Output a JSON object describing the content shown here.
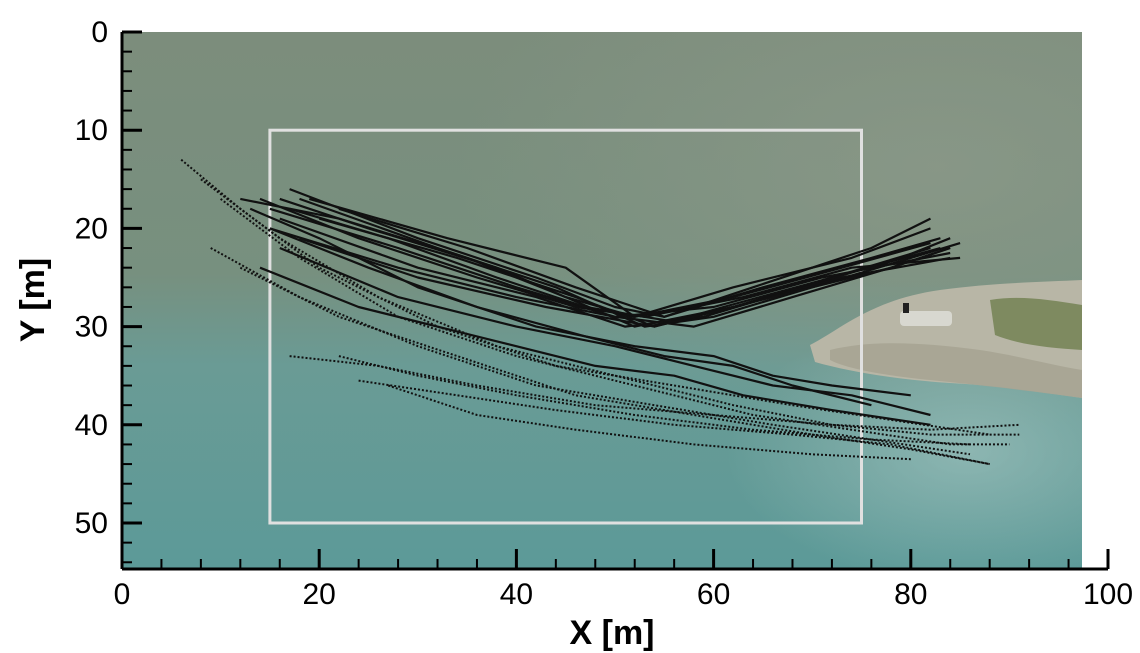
{
  "chart_data": {
    "type": "scatter",
    "title": "",
    "xlabel": "X [m]",
    "ylabel": "Y [m]",
    "xlim": [
      0,
      100
    ],
    "ylim": [
      55,
      0
    ],
    "y_axis_inverted": true,
    "x_ticks": [
      0,
      20,
      40,
      60,
      80,
      100
    ],
    "y_ticks": [
      0,
      10,
      20,
      30,
      40,
      50
    ],
    "grid": false,
    "legend": "none",
    "background": "aerial photograph of river water with rocky bank on the right",
    "region_box": {
      "x": [
        15,
        75
      ],
      "y": [
        10,
        50
      ],
      "color": "#e0e0e0"
    },
    "colors": {
      "tracks": "#111111",
      "box": "#e0e0e0",
      "water_top": "#7b8e7e",
      "water_bottom": "#5f9a98",
      "rocks": "#b9b8a8"
    },
    "series": [
      {
        "points": [
          [
            16,
            17
          ],
          [
            25,
            20
          ],
          [
            38,
            24
          ],
          [
            45,
            27
          ],
          [
            52,
            30
          ],
          [
            62,
            28
          ],
          [
            72,
            25
          ],
          [
            82,
            22
          ]
        ]
      },
      {
        "points": [
          [
            15,
            18
          ],
          [
            28,
            22
          ],
          [
            40,
            26
          ],
          [
            50,
            29
          ],
          [
            58,
            30
          ],
          [
            68,
            27
          ],
          [
            78,
            24
          ],
          [
            84,
            22
          ]
        ]
      },
      {
        "points": [
          [
            14,
            17
          ],
          [
            24,
            21
          ],
          [
            36,
            25
          ],
          [
            46,
            28
          ],
          [
            53,
            29
          ],
          [
            63,
            27
          ],
          [
            74,
            24
          ],
          [
            85,
            23
          ]
        ]
      },
      {
        "points": [
          [
            17,
            16
          ],
          [
            30,
            21
          ],
          [
            42,
            25
          ],
          [
            50,
            28
          ],
          [
            55,
            29
          ],
          [
            65,
            26
          ],
          [
            76,
            23
          ],
          [
            83,
            21
          ]
        ]
      },
      {
        "points": [
          [
            12,
            17
          ],
          [
            22,
            19
          ],
          [
            35,
            23
          ],
          [
            45,
            27
          ],
          [
            52,
            29
          ],
          [
            62,
            27
          ],
          [
            73,
            24
          ],
          [
            82,
            21.5
          ]
        ]
      },
      {
        "points": [
          [
            18,
            17
          ],
          [
            32,
            22
          ],
          [
            44,
            26
          ],
          [
            53,
            30
          ],
          [
            60,
            29
          ],
          [
            70,
            26
          ],
          [
            80,
            23
          ],
          [
            85,
            21.5
          ]
        ]
      },
      {
        "points": [
          [
            20,
            19
          ],
          [
            34,
            23
          ],
          [
            46,
            27
          ],
          [
            54,
            30
          ],
          [
            61,
            28
          ],
          [
            72,
            25
          ],
          [
            83,
            22
          ]
        ]
      },
      {
        "points": [
          [
            16,
            19
          ],
          [
            30,
            24
          ],
          [
            42,
            27
          ],
          [
            51,
            30
          ],
          [
            59,
            29
          ],
          [
            69,
            26
          ],
          [
            79,
            23
          ],
          [
            84,
            21
          ]
        ]
      },
      {
        "points": [
          [
            19,
            17
          ],
          [
            33,
            21
          ],
          [
            45,
            24
          ],
          [
            52,
            29
          ],
          [
            62,
            26
          ],
          [
            74,
            23
          ],
          [
            82,
            20
          ]
        ]
      },
      {
        "points": [
          [
            22,
            18
          ],
          [
            35,
            22
          ],
          [
            46,
            26
          ],
          [
            55,
            29
          ],
          [
            64,
            26
          ],
          [
            76,
            22
          ],
          [
            82,
            19
          ]
        ]
      },
      {
        "points": [
          [
            15,
            20
          ],
          [
            28,
            24
          ],
          [
            40,
            27
          ],
          [
            50,
            29
          ],
          [
            60,
            28
          ],
          [
            71,
            25
          ],
          [
            84,
            22.5
          ]
        ]
      },
      {
        "points": [
          [
            18,
            21
          ],
          [
            30,
            25
          ],
          [
            43,
            28
          ],
          [
            54,
            30
          ],
          [
            62,
            28
          ],
          [
            73,
            25
          ],
          [
            84,
            23
          ]
        ]
      },
      {
        "points": [
          [
            17,
            18
          ],
          [
            27,
            21
          ],
          [
            38,
            25
          ],
          [
            47,
            28
          ],
          [
            56,
            29.5
          ],
          [
            66,
            27
          ],
          [
            78,
            24
          ],
          [
            84,
            22
          ]
        ]
      },
      {
        "points": [
          [
            13,
            18
          ],
          [
            20,
            21
          ],
          [
            30,
            26
          ],
          [
            42,
            30
          ],
          [
            52,
            32
          ],
          [
            60,
            33
          ],
          [
            66,
            35
          ],
          [
            72,
            36
          ],
          [
            80,
            37
          ]
        ]
      },
      {
        "points": [
          [
            15,
            20
          ],
          [
            25,
            24
          ],
          [
            36,
            28
          ],
          [
            47,
            31
          ],
          [
            55,
            33
          ],
          [
            62,
            34
          ],
          [
            68,
            36
          ],
          [
            76,
            38
          ]
        ]
      },
      {
        "points": [
          [
            16,
            22
          ],
          [
            28,
            27
          ],
          [
            40,
            30
          ],
          [
            50,
            32
          ],
          [
            58,
            34
          ],
          [
            66,
            36
          ],
          [
            74,
            37
          ],
          [
            82,
            39
          ]
        ]
      },
      {
        "points": [
          [
            14,
            24
          ],
          [
            24,
            28
          ],
          [
            36,
            31
          ],
          [
            48,
            34
          ],
          [
            56,
            35
          ],
          [
            63,
            37
          ],
          [
            72,
            38.5
          ],
          [
            82,
            40
          ]
        ]
      },
      {
        "points": [
          [
            6,
            13
          ],
          [
            12,
            18
          ],
          [
            20,
            24
          ],
          [
            32,
            30
          ],
          [
            44,
            34
          ],
          [
            56,
            36
          ],
          [
            68,
            38
          ],
          [
            78,
            39.5
          ],
          [
            88,
            41
          ]
        ]
      },
      {
        "points": [
          [
            8,
            15
          ],
          [
            16,
            21
          ],
          [
            26,
            27
          ],
          [
            38,
            32
          ],
          [
            50,
            35
          ],
          [
            62,
            38
          ],
          [
            72,
            40
          ],
          [
            82,
            41
          ],
          [
            91,
            41
          ]
        ]
      },
      {
        "points": [
          [
            10,
            17
          ],
          [
            18,
            23
          ],
          [
            28,
            29
          ],
          [
            40,
            33
          ],
          [
            52,
            36
          ],
          [
            64,
            39
          ],
          [
            74,
            40.5
          ],
          [
            84,
            42
          ],
          [
            90,
            42
          ]
        ]
      },
      {
        "points": [
          [
            9,
            22
          ],
          [
            18,
            27
          ],
          [
            30,
            32
          ],
          [
            42,
            36
          ],
          [
            54,
            38
          ],
          [
            66,
            40
          ],
          [
            76,
            41.5
          ],
          [
            86,
            43
          ]
        ]
      },
      {
        "points": [
          [
            12,
            24
          ],
          [
            22,
            29
          ],
          [
            34,
            33
          ],
          [
            46,
            37
          ],
          [
            58,
            39
          ],
          [
            70,
            41
          ],
          [
            80,
            42.5
          ],
          [
            88,
            44
          ]
        ]
      },
      {
        "points": [
          [
            17,
            33
          ],
          [
            26,
            34
          ],
          [
            36,
            36
          ],
          [
            48,
            38
          ],
          [
            60,
            39
          ],
          [
            72,
            40
          ],
          [
            82,
            40.5
          ],
          [
            91,
            40
          ]
        ]
      },
      {
        "points": [
          [
            22,
            33
          ],
          [
            30,
            35
          ],
          [
            40,
            37
          ],
          [
            52,
            39
          ],
          [
            64,
            40.5
          ],
          [
            76,
            41.5
          ],
          [
            86,
            42
          ]
        ]
      },
      {
        "points": [
          [
            24,
            35.5
          ],
          [
            34,
            37
          ],
          [
            44,
            38.5
          ],
          [
            56,
            40
          ],
          [
            68,
            41
          ],
          [
            78,
            42
          ],
          [
            88,
            44
          ]
        ]
      },
      {
        "points": [
          [
            27,
            36
          ],
          [
            36,
            39
          ],
          [
            46,
            40.5
          ],
          [
            58,
            42
          ],
          [
            70,
            43
          ],
          [
            80,
            43.5
          ]
        ]
      }
    ]
  }
}
